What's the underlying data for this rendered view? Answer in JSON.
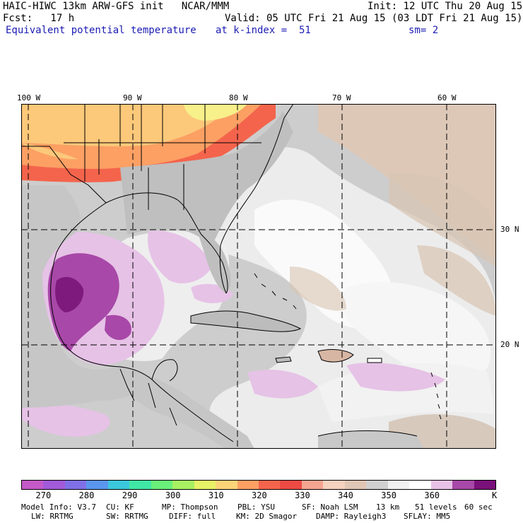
{
  "header": {
    "line1_left": "HAIC-HIWC 13km ARW-GFS init   NCAR/MMM",
    "line1_right": "Init: 12 UTC Thu 20 Aug 15",
    "line2_left": "Fcst:   17 h",
    "line2_right": "Valid: 05 UTC Fri 21 Aug 15 (03 LDT Fri 21 Aug 15)",
    "field": "Equivalent potential temperature",
    "level": "at k-index =  51",
    "smooth": "sm= 2"
  },
  "axes": {
    "lon_labels": [
      "100 W",
      "90 W",
      "80 W",
      "70 W",
      "60 W"
    ],
    "lat_labels": [
      "30 N",
      "20 N"
    ]
  },
  "colorbar": {
    "colors": [
      "#c45ac8",
      "#a25ad8",
      "#8070e8",
      "#5a96ee",
      "#3cc8dc",
      "#40e6a6",
      "#6af07a",
      "#a8f062",
      "#e8f266",
      "#fcd478",
      "#fca064",
      "#f4644c",
      "#ee4a44",
      "#f4a490",
      "#f4d2be",
      "#e0c6b4",
      "#d0d0d0",
      "#f0f0f0",
      "#ffffff",
      "#e8c2e6",
      "#a848a8",
      "#7a107a"
    ],
    "tick_labels": [
      "270",
      "280",
      "290",
      "300",
      "310",
      "320",
      "330",
      "340",
      "350",
      "360"
    ],
    "unit": "K"
  },
  "footer": {
    "line1": [
      "Model Info: V3.7",
      "CU: KF",
      "MP: Thompson",
      "PBL: YSU",
      "SF: Noah LSM",
      "13 km",
      "51 levels",
      "60 sec"
    ],
    "line2": [
      "LW: RRTMG",
      "SW: RRTMG",
      "DIFF: full",
      "KM: 2D Smagor",
      "DAMP: Rayleigh3",
      "SFLAY: MM5"
    ]
  }
}
